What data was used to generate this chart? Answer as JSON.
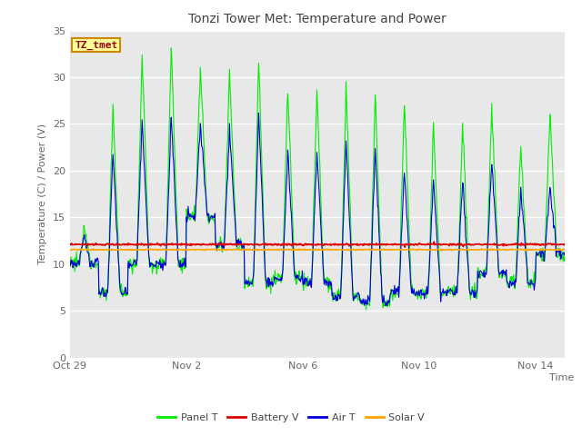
{
  "title": "Tonzi Tower Met: Temperature and Power",
  "ylabel": "Temperature (C) / Power (V)",
  "xlabel": "Time",
  "label_text": "TZ_tmet",
  "ylim": [
    0,
    35
  ],
  "yticks": [
    0,
    5,
    10,
    15,
    20,
    25,
    30,
    35
  ],
  "xtick_labels": [
    "Oct 29",
    "Nov 2",
    "Nov 6",
    "Nov 10",
    "Nov 14"
  ],
  "xtick_positions": [
    0,
    4,
    8,
    12,
    16
  ],
  "xlim": [
    0,
    17
  ],
  "legend_labels": [
    "Panel T",
    "Battery V",
    "Air T",
    "Solar V"
  ],
  "panel_color": "#00EE00",
  "battery_color": "#DD0000",
  "air_color": "#0000DD",
  "solar_color": "#FFA500",
  "plot_bg": "#E8E8E8",
  "grid_color": "#FFFFFF",
  "label_fg": "#990000",
  "label_bg": "#FFFF99",
  "label_border": "#CC8800",
  "title_color": "#444444",
  "tick_color": "#666666",
  "battery_v_level": 12.1,
  "solar_v_level": 11.55,
  "n_days": 17,
  "samples_per_day": 48
}
